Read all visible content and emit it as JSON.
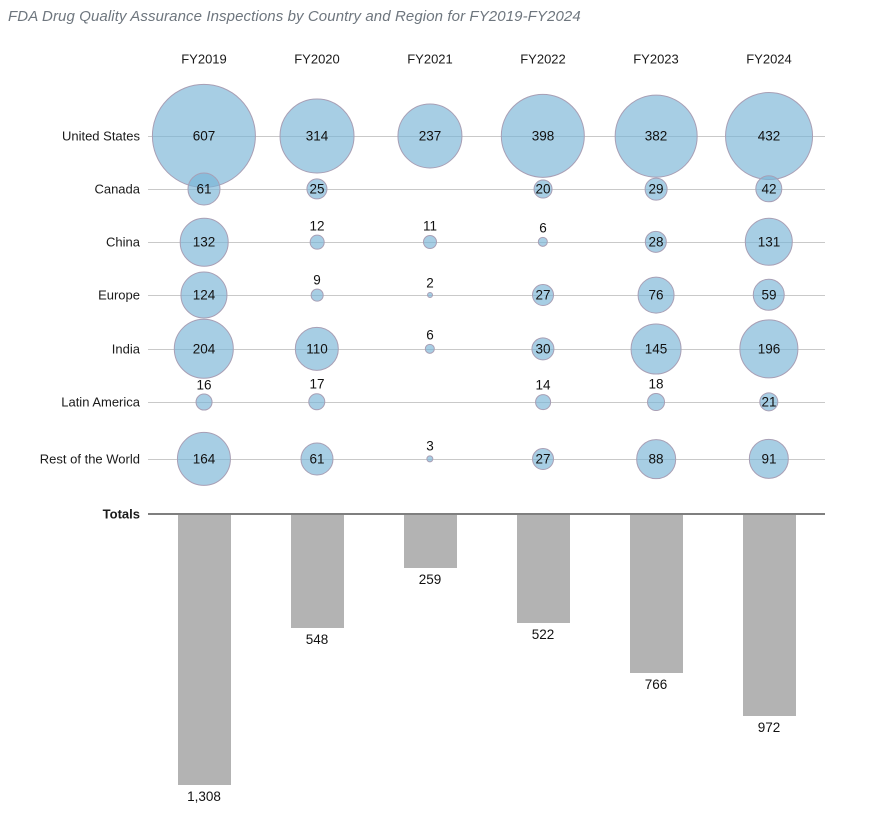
{
  "title": "FDA Drug Quality Assurance Inspections by Country and Region for FY2019-FY2024",
  "chart_data": {
    "type": "bubble",
    "title": "FDA Drug Quality Assurance Inspections by Country and Region for FY2019-FY2024",
    "columns": [
      "FY2019",
      "FY2020",
      "FY2021",
      "FY2022",
      "FY2023",
      "FY2024"
    ],
    "rows": [
      {
        "label": "United States",
        "values": [
          607,
          314,
          237,
          398,
          382,
          432
        ]
      },
      {
        "label": "Canada",
        "values": [
          61,
          25,
          null,
          20,
          29,
          42
        ]
      },
      {
        "label": "China",
        "values": [
          132,
          12,
          11,
          6,
          28,
          131
        ]
      },
      {
        "label": "Europe",
        "values": [
          124,
          9,
          2,
          27,
          76,
          59
        ]
      },
      {
        "label": "India",
        "values": [
          204,
          110,
          6,
          30,
          145,
          196
        ]
      },
      {
        "label": "Latin America",
        "values": [
          16,
          17,
          null,
          14,
          18,
          21
        ]
      },
      {
        "label": "Rest of the World",
        "values": [
          164,
          61,
          3,
          27,
          88,
          91
        ]
      }
    ],
    "totals": {
      "label": "Totals",
      "values": [
        1308,
        548,
        259,
        522,
        766,
        972
      ],
      "display": [
        "1,308",
        "548",
        "259",
        "522",
        "766",
        "972"
      ]
    },
    "legend_position": "none",
    "grid": "horizontal-row-lines",
    "colors": {
      "bubble_fill": "rgba(120,180,214,0.65)",
      "bubble_stroke": "#a89fb5",
      "bar_fill": "#b3b3b3",
      "row_line": "#c9c9c9",
      "totals_line": "#7f7f7f",
      "title_text": "#6e767e",
      "label_text": "#1a1a1a"
    }
  }
}
